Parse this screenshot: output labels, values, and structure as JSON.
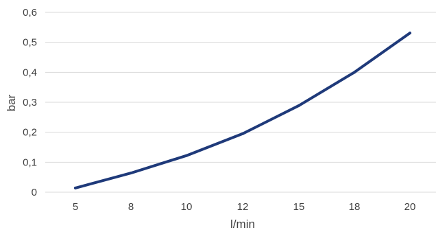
{
  "chart_data": {
    "type": "line",
    "title": "",
    "xlabel": "l/min",
    "ylabel": "bar",
    "categories": [
      "5",
      "8",
      "10",
      "12",
      "15",
      "18",
      "20"
    ],
    "y_tick_labels": [
      "0",
      "0,1",
      "0,2",
      "0,3",
      "0,4",
      "0,5",
      "0,6"
    ],
    "y_ticks": [
      0,
      0.1,
      0.2,
      0.3,
      0.4,
      0.5,
      0.6
    ],
    "ylim": [
      0,
      0.6
    ],
    "grid": true,
    "legend": "none",
    "series": [
      {
        "values": [
          0.014,
          0.064,
          0.122,
          0.195,
          0.289,
          0.4,
          0.531
        ],
        "color": "#1f3a7a"
      }
    ],
    "gridline_color": "#d9d9d9",
    "text_color": "#404040"
  }
}
